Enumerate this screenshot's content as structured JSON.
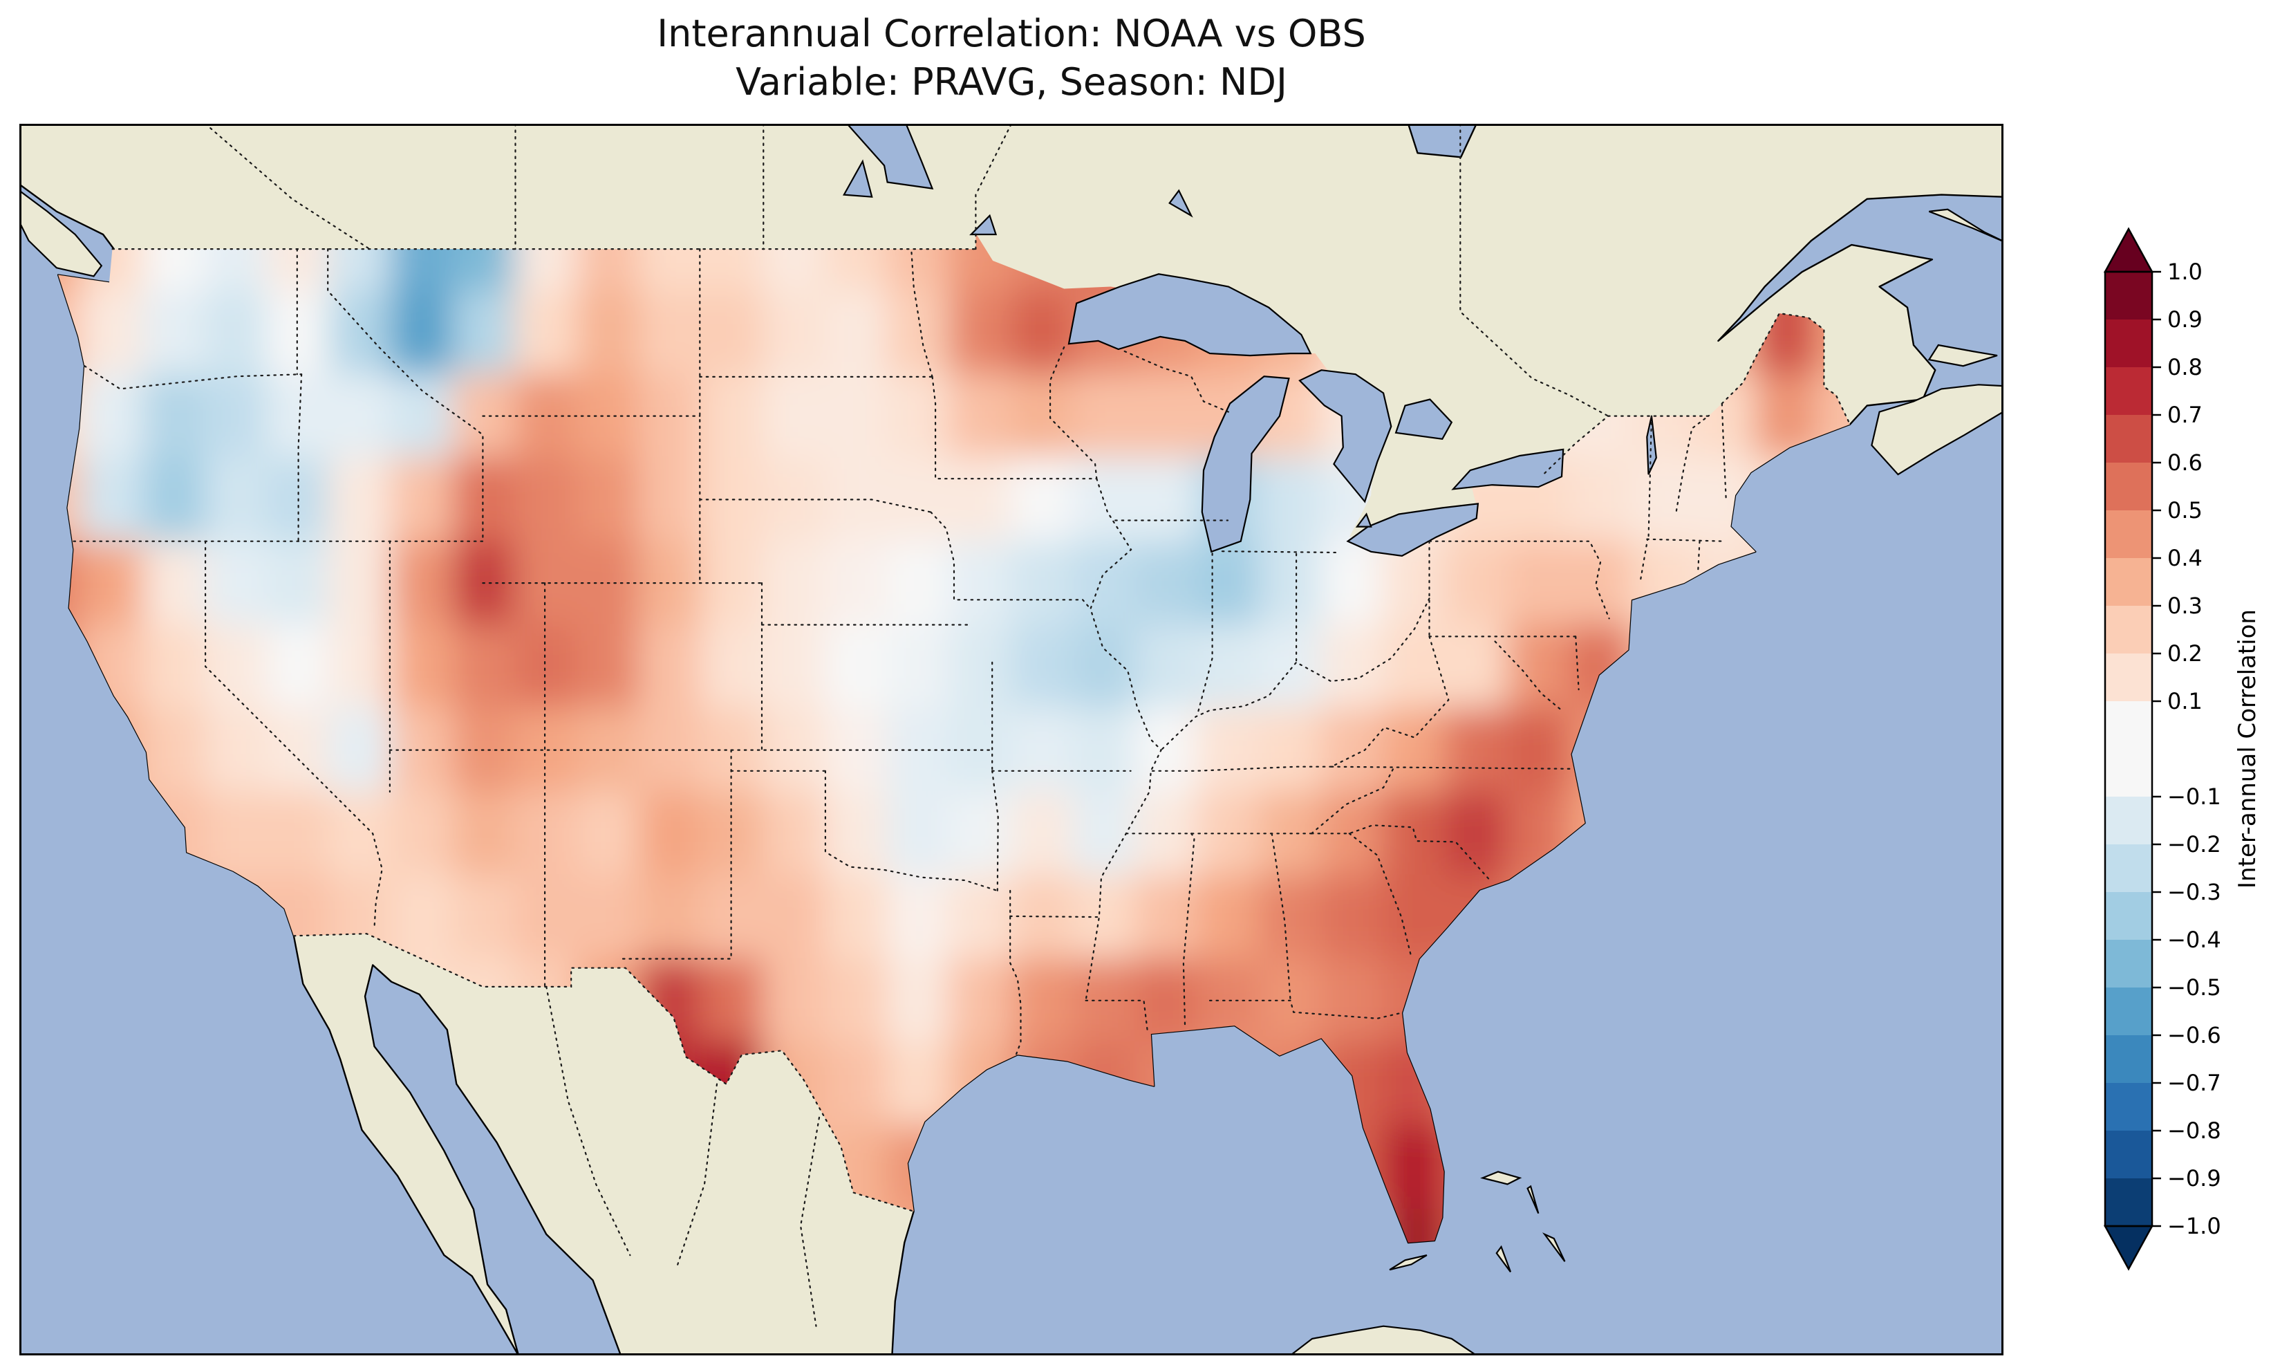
{
  "title": {
    "line1": "Interannual Correlation: NOAA vs OBS",
    "line2": "Variable: PRAVG, Season: NDJ"
  },
  "colorbar": {
    "label": "Inter-annual Correlation",
    "ticks": [
      "1.0",
      "0.9",
      "0.8",
      "0.7",
      "0.6",
      "0.5",
      "0.4",
      "0.3",
      "0.2",
      "0.1",
      "−0.1",
      "−0.2",
      "−0.3",
      "−0.4",
      "−0.5",
      "−0.6",
      "−0.7",
      "−0.8",
      "−0.9",
      "−1.0"
    ],
    "tick_values": [
      1.0,
      0.9,
      0.8,
      0.7,
      0.6,
      0.5,
      0.4,
      0.3,
      0.2,
      0.1,
      -0.1,
      -0.2,
      -0.3,
      -0.4,
      -0.5,
      -0.6,
      -0.7,
      -0.8,
      -0.9,
      -1.0
    ],
    "palette_values": [
      -1,
      -0.8,
      -0.6,
      -0.4,
      -0.2,
      0,
      0.2,
      0.4,
      0.6,
      0.8,
      1
    ],
    "palette": [
      "#053061",
      "#2166ac",
      "#4393c3",
      "#92c5de",
      "#d1e5f0",
      "#f7f7f7",
      "#fddbc7",
      "#f4a582",
      "#d6604d",
      "#b2182b",
      "#67001f"
    ]
  },
  "map": {
    "ocean_color": "#9fb6d9",
    "land_color": "#ebe9d4",
    "extent": {
      "lon_min": -126,
      "lon_max": -62,
      "lat_min": 22.5,
      "lat_max": 52
    }
  },
  "chart_data": {
    "type": "heatmap",
    "title": "Interannual Correlation: NOAA vs OBS",
    "subtitle": "Variable: PRAVG, Season: NDJ",
    "colorbar_label": "Inter-annual Correlation",
    "colormap": "RdBu_r",
    "vmin": -1.0,
    "vmax": 1.0,
    "levels_note": "filled contour levels every 0.1 from -1.0 to 1.0 with no 0.0 level",
    "region": "Contiguous United States",
    "grid": {
      "lons": [
        -125,
        -123,
        -121,
        -119,
        -117,
        -115,
        -113,
        -111,
        -109,
        -107,
        -105,
        -103,
        -101,
        -99,
        -97,
        -95,
        -93,
        -91,
        -89,
        -87,
        -85,
        -83,
        -81,
        -79,
        -77,
        -75,
        -73,
        -71,
        -69,
        -67
      ],
      "lats": [
        49,
        47,
        45,
        43,
        41,
        39,
        37,
        35,
        33,
        31,
        29,
        27,
        25
      ],
      "values": [
        [
          0.4,
          0.2,
          0.0,
          -0.1,
          0.1,
          -0.2,
          -0.5,
          -0.45,
          0.1,
          0.3,
          0.2,
          0.2,
          0.1,
          0.2,
          0.3,
          0.45,
          0.5,
          0.55,
          0.5,
          0.45,
          0.3,
          0.2,
          0.1,
          0.1,
          0.1,
          0.2,
          0.2,
          0.3,
          0.6,
          0.5
        ],
        [
          0.3,
          0.1,
          -0.1,
          -0.2,
          0.0,
          -0.3,
          -0.55,
          -0.3,
          0.2,
          0.35,
          0.25,
          0.25,
          0.15,
          0.1,
          0.25,
          0.5,
          0.6,
          0.5,
          0.45,
          0.4,
          0.35,
          0.2,
          0.1,
          0.15,
          0.1,
          0.15,
          0.2,
          0.35,
          0.65,
          0.4
        ],
        [
          0.2,
          -0.1,
          -0.3,
          -0.25,
          -0.1,
          -0.1,
          -0.2,
          0.3,
          0.45,
          0.4,
          0.3,
          0.2,
          0.1,
          0.1,
          0.15,
          0.3,
          0.35,
          0.3,
          0.3,
          0.3,
          0.25,
          0.1,
          0.05,
          0.1,
          0.1,
          0.1,
          0.15,
          0.2,
          0.45,
          0.3
        ],
        [
          0.3,
          -0.2,
          -0.35,
          -0.2,
          -0.25,
          0.1,
          0.3,
          0.55,
          0.5,
          0.45,
          0.3,
          0.2,
          0.15,
          0.1,
          0.1,
          0.1,
          0.0,
          -0.1,
          -0.1,
          -0.3,
          -0.2,
          -0.1,
          0.1,
          0.2,
          0.2,
          0.15,
          0.1,
          0.1,
          0.2,
          0.2
        ],
        [
          0.5,
          0.4,
          0.1,
          -0.1,
          -0.15,
          0.1,
          0.45,
          0.7,
          0.5,
          0.5,
          0.35,
          0.2,
          0.1,
          0.05,
          0.0,
          -0.1,
          -0.2,
          -0.25,
          -0.3,
          -0.35,
          -0.2,
          0.0,
          0.15,
          0.25,
          0.3,
          0.3,
          0.2,
          0.15,
          0.2,
          0.2
        ],
        [
          0.45,
          0.3,
          0.2,
          0.1,
          0.0,
          0.1,
          0.4,
          0.5,
          0.55,
          0.5,
          0.3,
          0.15,
          0.1,
          0.0,
          -0.05,
          -0.15,
          -0.25,
          -0.3,
          -0.2,
          -0.15,
          -0.1,
          0.1,
          0.2,
          0.2,
          0.45,
          0.55,
          0.3,
          0.2,
          0.2,
          0.2
        ],
        [
          0.3,
          0.35,
          0.25,
          0.15,
          0.1,
          -0.1,
          0.3,
          0.45,
          0.4,
          0.35,
          0.3,
          0.25,
          0.15,
          0.05,
          -0.1,
          -0.15,
          -0.1,
          -0.15,
          0.0,
          0.15,
          0.2,
          0.3,
          0.4,
          0.55,
          0.6,
          0.45,
          0.2,
          0.1,
          0.1,
          0.1
        ],
        [
          0.2,
          0.3,
          0.3,
          0.25,
          0.25,
          0.2,
          0.25,
          0.35,
          0.3,
          0.25,
          0.4,
          0.35,
          0.25,
          0.1,
          -0.1,
          -0.05,
          0.1,
          -0.1,
          0.1,
          0.25,
          0.35,
          0.45,
          0.6,
          0.7,
          0.55,
          0.4,
          0.2,
          0.1,
          0.1,
          0.1
        ],
        [
          0.2,
          0.25,
          0.3,
          0.3,
          0.3,
          0.25,
          0.2,
          0.25,
          0.3,
          0.3,
          0.35,
          0.3,
          0.3,
          0.2,
          0.05,
          0.15,
          0.25,
          0.2,
          0.3,
          0.4,
          0.5,
          0.55,
          0.6,
          0.6,
          0.5,
          0.3,
          0.2,
          0.1,
          0.1,
          0.1
        ],
        [
          0.2,
          0.2,
          0.25,
          0.25,
          0.3,
          0.25,
          0.2,
          0.2,
          0.25,
          0.4,
          0.7,
          0.55,
          0.3,
          0.25,
          0.1,
          0.3,
          0.45,
          0.5,
          0.55,
          0.5,
          0.45,
          0.5,
          0.55,
          0.5,
          0.4,
          0.3,
          0.2,
          0.1,
          0.1,
          0.1
        ],
        [
          0.2,
          0.2,
          0.2,
          0.2,
          0.2,
          0.2,
          0.2,
          0.2,
          0.25,
          0.5,
          0.75,
          0.8,
          0.35,
          0.3,
          0.2,
          0.35,
          0.5,
          0.55,
          0.5,
          0.45,
          0.5,
          0.6,
          0.65,
          0.5,
          0.4,
          0.3,
          0.2,
          0.1,
          0.1,
          0.1
        ],
        [
          0.2,
          0.2,
          0.2,
          0.2,
          0.2,
          0.2,
          0.2,
          0.2,
          0.2,
          0.2,
          0.3,
          0.3,
          0.3,
          0.35,
          0.45,
          0.3,
          0.3,
          0.3,
          0.3,
          0.3,
          0.4,
          0.6,
          0.8,
          0.6,
          0.4,
          0.2,
          0.2,
          0.1,
          0.1,
          0.1
        ],
        [
          0.2,
          0.2,
          0.2,
          0.2,
          0.2,
          0.2,
          0.2,
          0.2,
          0.2,
          0.2,
          0.2,
          0.2,
          0.3,
          0.35,
          0.4,
          0.3,
          0.3,
          0.3,
          0.3,
          0.3,
          0.4,
          0.5,
          0.85,
          0.6,
          0.3,
          0.2,
          0.2,
          0.1,
          0.1,
          0.1
        ]
      ]
    }
  }
}
